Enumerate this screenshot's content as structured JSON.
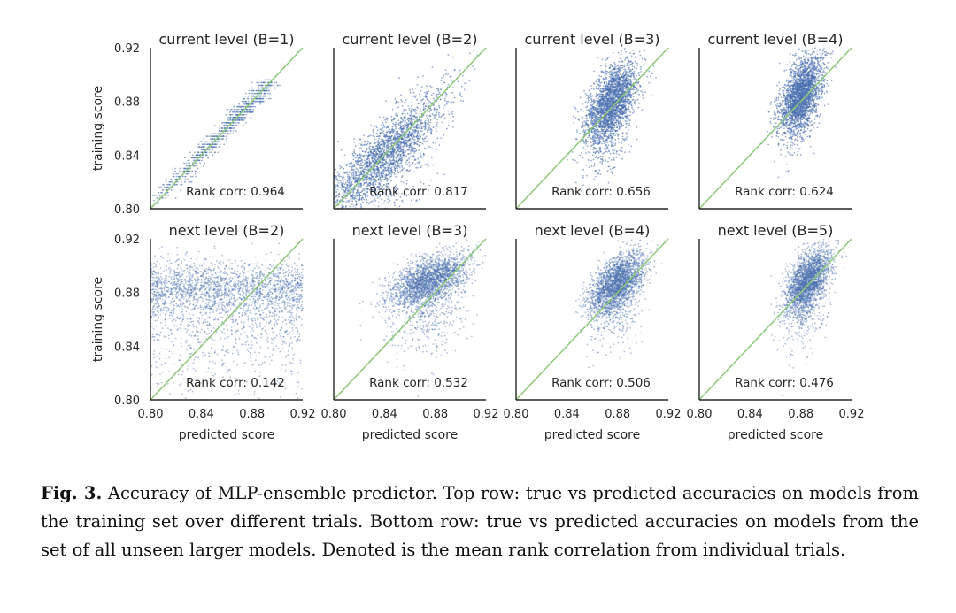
{
  "chart_data": [
    {
      "type": "scatter",
      "title": "current level (B=1)",
      "xlabel": "",
      "ylabel": "training score",
      "xlim": [
        0.8,
        0.92
      ],
      "ylim": [
        0.8,
        0.92
      ],
      "xticks": [],
      "yticks": [
        "0.80",
        "0.84",
        "0.88",
        "0.92"
      ],
      "annotation": "Rank corr: 0.964",
      "point_color": "#4c72b0",
      "reference_line": "y = x",
      "reference_color": "#8cc878"
    },
    {
      "type": "scatter",
      "title": "current level (B=2)",
      "xlabel": "",
      "ylabel": "",
      "xlim": [
        0.8,
        0.92
      ],
      "ylim": [
        0.8,
        0.92
      ],
      "xticks": [],
      "yticks": [],
      "annotation": "Rank corr: 0.817",
      "point_color": "#4c72b0",
      "reference_line": "y = x",
      "reference_color": "#8cc878"
    },
    {
      "type": "scatter",
      "title": "current level (B=3)",
      "xlabel": "",
      "ylabel": "",
      "xlim": [
        0.8,
        0.92
      ],
      "ylim": [
        0.8,
        0.92
      ],
      "xticks": [],
      "yticks": [],
      "annotation": "Rank corr: 0.656",
      "point_color": "#4c72b0",
      "reference_line": "y = x",
      "reference_color": "#8cc878"
    },
    {
      "type": "scatter",
      "title": "current level (B=4)",
      "xlabel": "",
      "ylabel": "",
      "xlim": [
        0.8,
        0.92
      ],
      "ylim": [
        0.8,
        0.92
      ],
      "xticks": [],
      "yticks": [],
      "annotation": "Rank corr: 0.624",
      "point_color": "#4c72b0",
      "reference_line": "y = x",
      "reference_color": "#8cc878"
    },
    {
      "type": "scatter",
      "title": "next level (B=2)",
      "xlabel": "predicted score",
      "ylabel": "training score",
      "xlim": [
        0.8,
        0.92
      ],
      "ylim": [
        0.8,
        0.92
      ],
      "xticks": [
        "0.80",
        "0.84",
        "0.88",
        "0.92"
      ],
      "yticks": [
        "0.80",
        "0.84",
        "0.88",
        "0.92"
      ],
      "annotation": "Rank corr: 0.142",
      "point_color": "#4c72b0",
      "reference_line": "y = x",
      "reference_color": "#8cc878"
    },
    {
      "type": "scatter",
      "title": "next level (B=3)",
      "xlabel": "predicted score",
      "ylabel": "",
      "xlim": [
        0.8,
        0.92
      ],
      "ylim": [
        0.8,
        0.92
      ],
      "xticks": [
        "0.80",
        "0.84",
        "0.88",
        "0.92"
      ],
      "yticks": [],
      "annotation": "Rank corr: 0.532",
      "point_color": "#4c72b0",
      "reference_line": "y = x",
      "reference_color": "#8cc878"
    },
    {
      "type": "scatter",
      "title": "next level (B=4)",
      "xlabel": "predicted score",
      "ylabel": "",
      "xlim": [
        0.8,
        0.92
      ],
      "ylim": [
        0.8,
        0.92
      ],
      "xticks": [
        "0.80",
        "0.84",
        "0.88",
        "0.92"
      ],
      "yticks": [],
      "annotation": "Rank corr: 0.506",
      "point_color": "#4c72b0",
      "reference_line": "y = x",
      "reference_color": "#8cc878"
    },
    {
      "type": "scatter",
      "title": "next level (B=5)",
      "xlabel": "predicted score",
      "ylabel": "",
      "xlim": [
        0.8,
        0.92
      ],
      "ylim": [
        0.8,
        0.92
      ],
      "xticks": [
        "0.80",
        "0.84",
        "0.88",
        "0.92"
      ],
      "yticks": [],
      "annotation": "Rank corr: 0.476",
      "point_color": "#4c72b0",
      "reference_line": "y = x",
      "reference_color": "#8cc878"
    }
  ],
  "caption": {
    "label": "Fig. 3.",
    "text": "Accuracy of MLP-ensemble predictor. Top row: true vs predicted accuracies on models from the training set over different trials. Bottom row: true vs predicted accuracies on models from the set of all unseen larger models. Denoted is the mean rank correlation from individual trials."
  }
}
